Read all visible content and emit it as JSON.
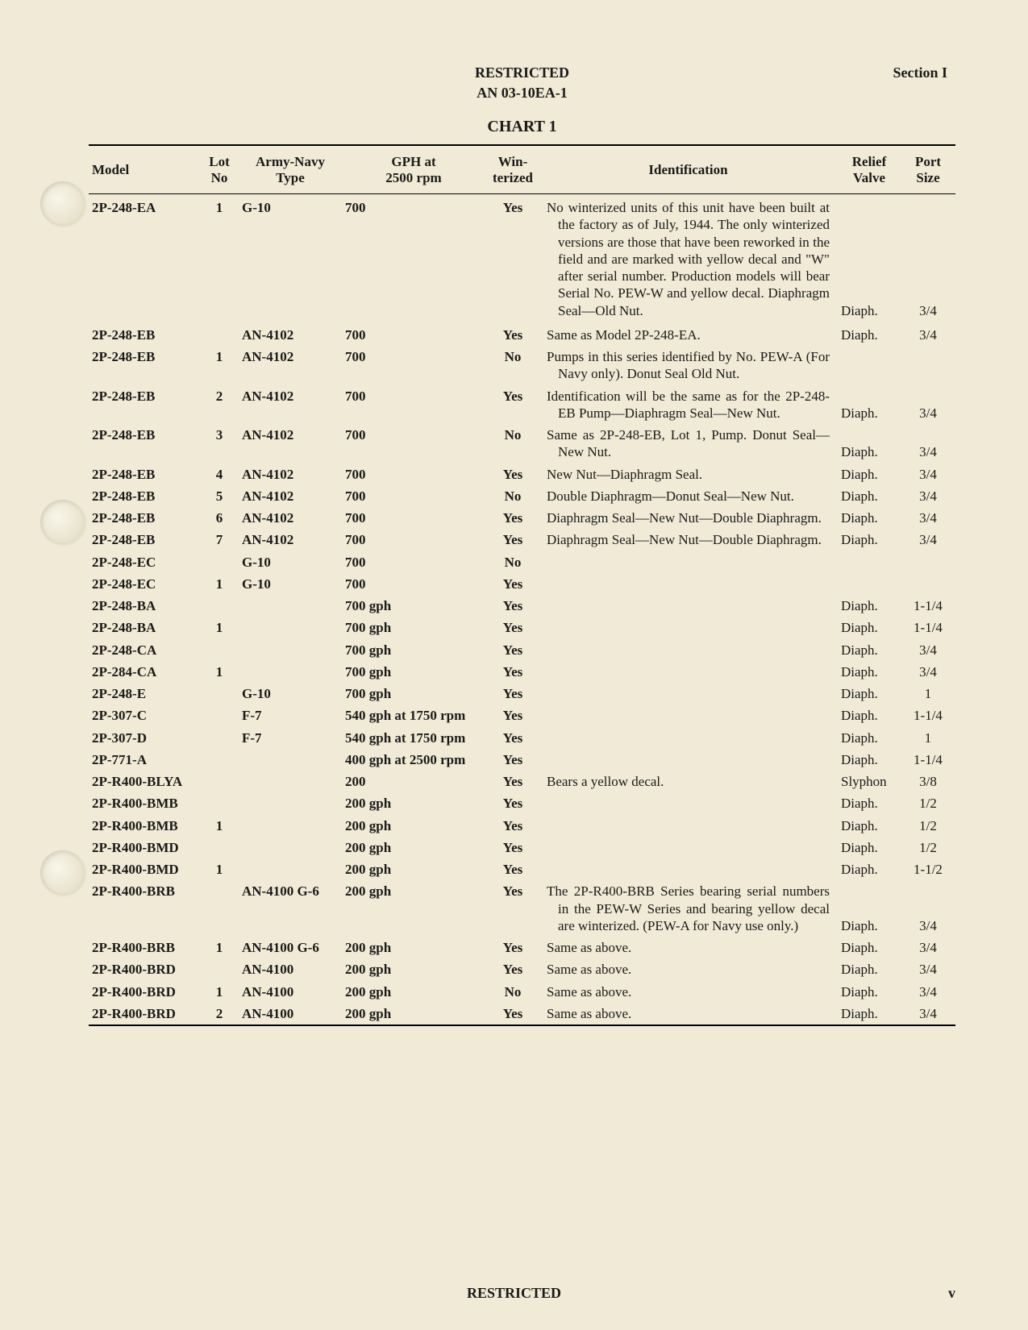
{
  "header": {
    "restricted": "RESTRICTED",
    "doc_number": "AN 03-10EA-1",
    "section": "Section I",
    "chart_title": "CHART 1"
  },
  "columns": {
    "model": "Model",
    "lot": "Lot\nNo",
    "type": "Army-Navy\nType",
    "gph": "GPH at\n2500 rpm",
    "win": "Win-\nterized",
    "ident": "Identification",
    "relief": "Relief\nValve",
    "port": "Port\nSize"
  },
  "rows": [
    {
      "model": "2P-248-EA",
      "lot": "1",
      "type": "G-10",
      "gph": "700",
      "win": "Yes",
      "ident": "No winterized units of this unit have been built at the factory as of July, 1944. The only winterized versions are those that have been reworked in the field and are marked with yellow decal and \"W\" after serial number. Production models will bear Serial No. PEW-W and yellow decal. Diaphragm Seal—Old Nut.",
      "relief": "Diaph.",
      "port": "3/4"
    },
    {
      "model": "2P-248-EB",
      "lot": "",
      "type": "AN-4102",
      "gph": "700",
      "win": "Yes",
      "ident": "Same as Model 2P-248-EA.",
      "relief": "Diaph.",
      "port": "3/4"
    },
    {
      "model": "2P-248-EB",
      "lot": "1",
      "type": "AN-4102",
      "gph": "700",
      "win": "No",
      "ident": "Pumps in this series identified by No. PEW-A (For Navy only). Donut Seal Old Nut.",
      "relief": "",
      "port": ""
    },
    {
      "model": "2P-248-EB",
      "lot": "2",
      "type": "AN-4102",
      "gph": "700",
      "win": "Yes",
      "ident": "Identification will be the same as for the 2P-248-EB Pump—Diaphragm Seal—New Nut.",
      "relief": "Diaph.",
      "port": "3/4"
    },
    {
      "model": "2P-248-EB",
      "lot": "3",
      "type": "AN-4102",
      "gph": "700",
      "win": "No",
      "ident": "Same as 2P-248-EB, Lot 1, Pump. Donut Seal—New Nut.",
      "relief": "Diaph.",
      "port": "3/4"
    },
    {
      "model": "2P-248-EB",
      "lot": "4",
      "type": "AN-4102",
      "gph": "700",
      "win": "Yes",
      "ident": "New Nut—Diaphragm Seal.",
      "relief": "Diaph.",
      "port": "3/4"
    },
    {
      "model": "2P-248-EB",
      "lot": "5",
      "type": "AN-4102",
      "gph": "700",
      "win": "No",
      "ident": "Double Diaphragm—Donut Seal—New Nut.",
      "relief": "Diaph.",
      "port": "3/4"
    },
    {
      "model": "2P-248-EB",
      "lot": "6",
      "type": "AN-4102",
      "gph": "700",
      "win": "Yes",
      "ident": "Diaphragm Seal—New Nut—Double Diaphragm.",
      "relief": "Diaph.",
      "port": "3/4"
    },
    {
      "model": "2P-248-EB",
      "lot": "7",
      "type": "AN-4102",
      "gph": "700",
      "win": "Yes",
      "ident": "Diaphragm Seal—New Nut—Double Diaphragm.",
      "relief": "Diaph.",
      "port": "3/4"
    },
    {
      "model": "2P-248-EC",
      "lot": "",
      "type": "G-10",
      "gph": "700",
      "win": "No",
      "ident": "",
      "relief": "",
      "port": ""
    },
    {
      "model": "2P-248-EC",
      "lot": "1",
      "type": "G-10",
      "gph": "700",
      "win": "Yes",
      "ident": "",
      "relief": "",
      "port": ""
    },
    {
      "model": "2P-248-BA",
      "lot": "",
      "type": "",
      "gph": "700 gph",
      "win": "Yes",
      "ident": "",
      "relief": "Diaph.",
      "port": "1-1/4"
    },
    {
      "model": "2P-248-BA",
      "lot": "1",
      "type": "",
      "gph": "700 gph",
      "win": "Yes",
      "ident": "",
      "relief": "Diaph.",
      "port": "1-1/4"
    },
    {
      "model": "2P-248-CA",
      "lot": "",
      "type": "",
      "gph": "700 gph",
      "win": "Yes",
      "ident": "",
      "relief": "Diaph.",
      "port": "3/4"
    },
    {
      "model": "2P-284-CA",
      "lot": "1",
      "type": "",
      "gph": "700 gph",
      "win": "Yes",
      "ident": "",
      "relief": "Diaph.",
      "port": "3/4"
    },
    {
      "model": "2P-248-E",
      "lot": "",
      "type": "G-10",
      "gph": "700 gph",
      "win": "Yes",
      "ident": "",
      "relief": "Diaph.",
      "port": "1"
    },
    {
      "model": "2P-307-C",
      "lot": "",
      "type": "F-7",
      "gph": "540 gph at 1750 rpm",
      "win": "Yes",
      "ident": "",
      "relief": "Diaph.",
      "port": "1-1/4"
    },
    {
      "model": "2P-307-D",
      "lot": "",
      "type": "F-7",
      "gph": "540 gph at 1750 rpm",
      "win": "Yes",
      "ident": "",
      "relief": "Diaph.",
      "port": "1"
    },
    {
      "model": "2P-771-A",
      "lot": "",
      "type": "",
      "gph": "400 gph at 2500 rpm",
      "win": "Yes",
      "ident": "",
      "relief": "Diaph.",
      "port": "1-1/4"
    },
    {
      "model": "2P-R400-BLYA",
      "lot": "",
      "type": "",
      "gph": "200",
      "win": "Yes",
      "ident": "Bears a yellow decal.",
      "relief": "Slyphon",
      "port": "3/8"
    },
    {
      "model": "2P-R400-BMB",
      "lot": "",
      "type": "",
      "gph": "200 gph",
      "win": "Yes",
      "ident": "",
      "relief": "Diaph.",
      "port": "1/2"
    },
    {
      "model": "2P-R400-BMB",
      "lot": "1",
      "type": "",
      "gph": "200 gph",
      "win": "Yes",
      "ident": "",
      "relief": "Diaph.",
      "port": "1/2"
    },
    {
      "model": "2P-R400-BMD",
      "lot": "",
      "type": "",
      "gph": "200 gph",
      "win": "Yes",
      "ident": "",
      "relief": "Diaph.",
      "port": "1/2"
    },
    {
      "model": "2P-R400-BMD",
      "lot": "1",
      "type": "",
      "gph": "200 gph",
      "win": "Yes",
      "ident": "",
      "relief": "Diaph.",
      "port": "1-1/2"
    },
    {
      "model": "2P-R400-BRB",
      "lot": "",
      "type": "AN-4100 G-6",
      "gph": "200 gph",
      "win": "Yes",
      "ident": "The 2P-R400-BRB Series bearing serial numbers in the PEW-W Series and bearing yellow decal are winterized. (PEW-A for Navy use only.)",
      "relief": "Diaph.",
      "port": "3/4"
    },
    {
      "model": "2P-R400-BRB",
      "lot": "1",
      "type": "AN-4100 G-6",
      "gph": "200 gph",
      "win": "Yes",
      "ident": "Same as above.",
      "relief": "Diaph.",
      "port": "3/4"
    },
    {
      "model": "2P-R400-BRD",
      "lot": "",
      "type": "AN-4100",
      "gph": "200 gph",
      "win": "Yes",
      "ident": "Same as above.",
      "relief": "Diaph.",
      "port": "3/4"
    },
    {
      "model": "2P-R400-BRD",
      "lot": "1",
      "type": "AN-4100",
      "gph": "200 gph",
      "win": "No",
      "ident": "Same as above.",
      "relief": "Diaph.",
      "port": "3/4"
    },
    {
      "model": "2P-R400-BRD",
      "lot": "2",
      "type": "AN-4100",
      "gph": "200 gph",
      "win": "Yes",
      "ident": "Same as above.",
      "relief": "Diaph.",
      "port": "3/4"
    }
  ],
  "footer": {
    "restricted": "RESTRICTED",
    "page_number": "v"
  },
  "style": {
    "background_color": "#f0ead6",
    "text_color": "#1a1a1a",
    "rule_color": "#000000",
    "header_fontsize_pt": 14,
    "body_fontsize_pt": 12,
    "font_family": "Times New Roman"
  }
}
